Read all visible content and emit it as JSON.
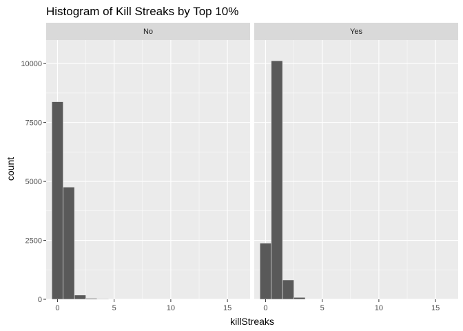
{
  "chart_data": {
    "type": "bar",
    "title": "Histogram of Kill Streaks by Top 10%",
    "xlabel": "killStreaks",
    "ylabel": "count",
    "xlim": [
      -1,
      17
    ],
    "ylim": [
      0,
      11000
    ],
    "x_ticks": [
      0,
      5,
      10,
      15
    ],
    "x_tick_labels": [
      "0",
      "5",
      "10",
      "15"
    ],
    "y_ticks": [
      0,
      2500,
      5000,
      7500,
      10000
    ],
    "y_tick_labels": [
      "0",
      "2500",
      "5000",
      "7500",
      "10000"
    ],
    "grid": true,
    "bar_color": "#595959",
    "panel_background": "#ebebeb",
    "strip_background": "#d9d9d9",
    "grid_color": "#ffffff",
    "facets": [
      {
        "label": "No",
        "bins": [
          0,
          1,
          2,
          3,
          4
        ],
        "values": [
          8380,
          4760,
          180,
          40,
          20
        ]
      },
      {
        "label": "Yes",
        "bins": [
          0,
          1,
          2,
          3
        ],
        "values": [
          2380,
          10120,
          820,
          80
        ]
      }
    ]
  }
}
